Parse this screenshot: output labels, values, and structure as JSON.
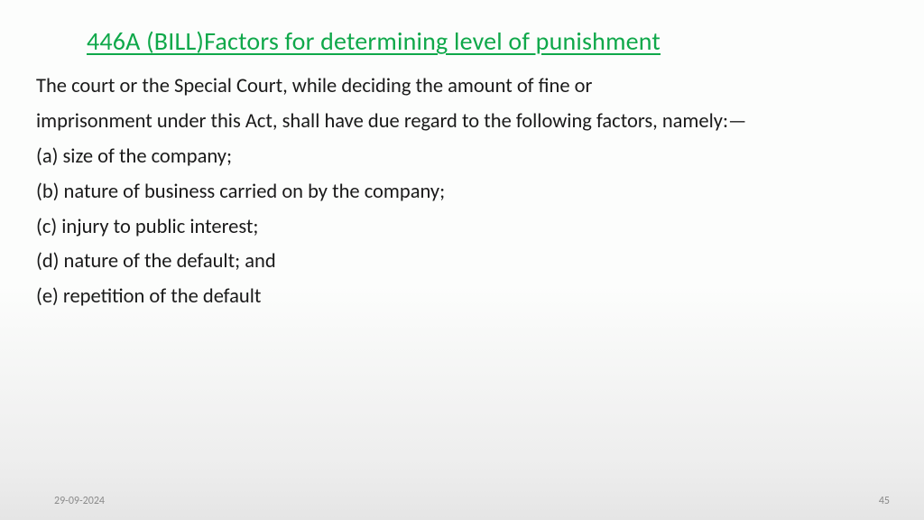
{
  "title": "446A (BILL)Factors for determining level of punishment",
  "title_color": "#0fa84a",
  "title_fontsize": 28,
  "body_fontsize": 22.5,
  "body_color": "#1a1a1a",
  "background_gradient_top": "#fcfdfc",
  "background_gradient_bottom": "#e5e5e5",
  "lines": [
    "The court or the Special Court, while deciding the amount of fine or",
    "imprisonment under this Act, shall have due regard to the following factors, namely:—",
    "(a) size of the company;",
    "(b) nature of business carried on by the company;",
    "(c) injury to public interest;",
    "(d) nature of the default; and",
    "(e) repetition of the default"
  ],
  "footer": {
    "date": "29-09-2024",
    "page": "45",
    "color": "#8a8a8a",
    "fontsize": 12
  }
}
